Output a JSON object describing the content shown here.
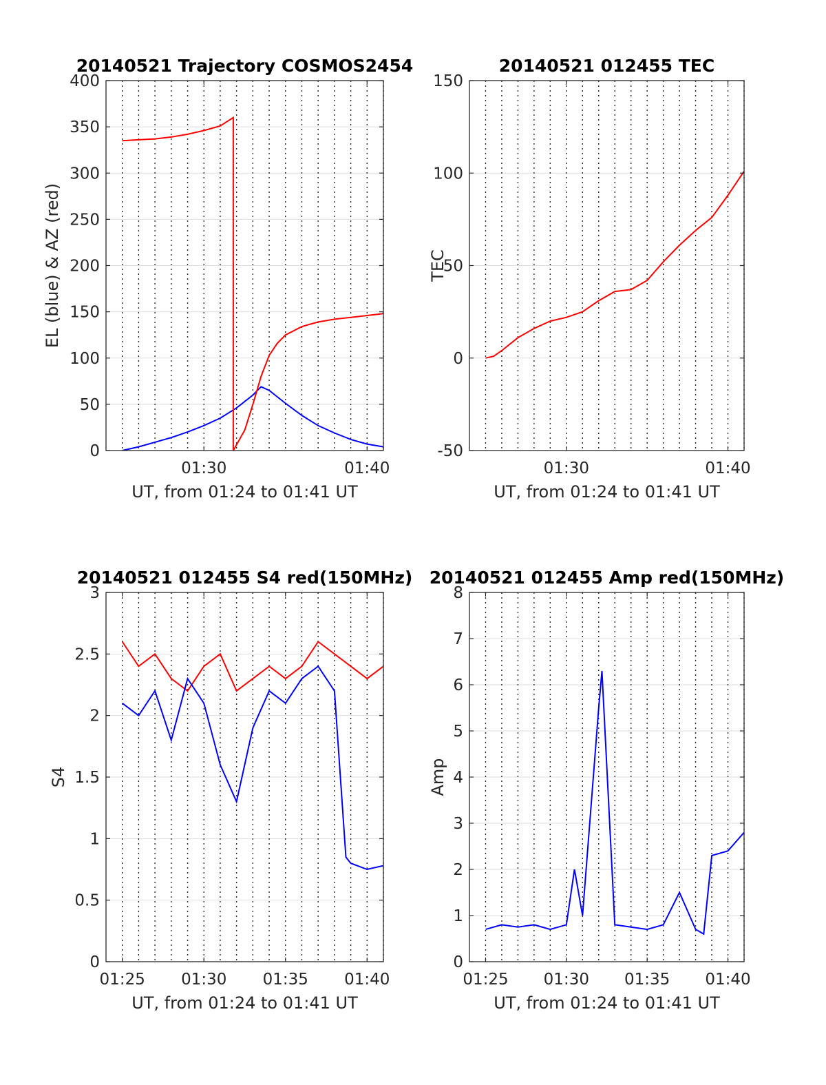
{
  "colors": {
    "red": "#ff0000",
    "blue": "#0000ff"
  },
  "chart_data": [
    {
      "id": "trajectory",
      "type": "line",
      "title": "20140521 Trajectory COSMOS2454",
      "xlabel": "UT, from 01:24 to 01:41 UT",
      "ylabel": "EL (blue) & AZ (red)",
      "xlim_minutes_after_01_00": [
        24.0,
        41.0
      ],
      "ylim": [
        0,
        400
      ],
      "yticks": [
        "0",
        "50",
        "100",
        "150",
        "200",
        "250",
        "300",
        "350",
        "400"
      ],
      "xticks": [
        "01:30",
        "01:40"
      ],
      "grid": "vertical dotted every minute, horizontal at y ticks",
      "series": [
        {
          "name": "EL (blue)",
          "color": "blue",
          "x": [
            "01:25",
            "01:26",
            "01:27",
            "01:28",
            "01:29",
            "01:30",
            "01:31",
            "01:32",
            "01:33",
            "01:33.5",
            "01:34",
            "01:35",
            "01:36",
            "01:37",
            "01:38",
            "01:39",
            "01:40",
            "01:41"
          ],
          "y": [
            0,
            4,
            9,
            14,
            20,
            27,
            35,
            46,
            60,
            69,
            65,
            51,
            38,
            27,
            19,
            12,
            7,
            4
          ]
        },
        {
          "name": "AZ (red)",
          "color": "red",
          "x": [
            "01:25",
            "01:26",
            "01:27",
            "01:28",
            "01:29",
            "01:30",
            "01:31",
            "01:31.8",
            "01:31.8",
            "01:32.5",
            "01:33",
            "01:33.5",
            "01:34",
            "01:34.5",
            "01:35",
            "01:36",
            "01:37",
            "01:38",
            "01:39",
            "01:40",
            "01:41"
          ],
          "y": [
            335,
            336,
            337,
            339,
            342,
            346,
            351,
            360,
            0,
            22,
            50,
            80,
            103,
            116,
            125,
            134,
            139,
            142,
            144,
            146,
            148
          ]
        }
      ]
    },
    {
      "id": "tec",
      "type": "line",
      "title": "20140521 012455 TEC",
      "xlabel": "UT, from 01:24 to 01:41 UT",
      "ylabel": "TEC",
      "xlim_minutes_after_01_00": [
        24.0,
        41.0
      ],
      "ylim": [
        -50,
        150
      ],
      "yticks": [
        "-50",
        "0",
        "50",
        "100",
        "150"
      ],
      "xticks": [
        "01:30",
        "01:40"
      ],
      "grid": "vertical dotted every minute, horizontal at y ticks",
      "series": [
        {
          "name": "TEC",
          "color": "red",
          "x": [
            "01:25",
            "01:25.5",
            "01:26",
            "01:27",
            "01:28",
            "01:29",
            "01:30",
            "01:31",
            "01:32",
            "01:33",
            "01:34",
            "01:35",
            "01:36",
            "01:37",
            "01:38",
            "01:39",
            "01:40",
            "01:41"
          ],
          "y": [
            0,
            1,
            4,
            11,
            16,
            20,
            22,
            25,
            31,
            36,
            37,
            42,
            52,
            61,
            69,
            76,
            88,
            101
          ]
        }
      ]
    },
    {
      "id": "s4",
      "type": "line",
      "title": "20140521 012455 S4 red(150MHz)",
      "xlabel": "UT, from 01:24 to 01:41 UT",
      "ylabel": "S4",
      "xlim_minutes_after_01_00": [
        24.0,
        41.0
      ],
      "ylim": [
        0,
        3
      ],
      "yticks": [
        "0",
        "0.5",
        "1",
        "1.5",
        "2",
        "2.5",
        "3"
      ],
      "xticks": [
        "01:25",
        "01:30",
        "01:35",
        "01:40"
      ],
      "grid": "vertical dotted every minute, horizontal at y ticks",
      "series": [
        {
          "name": "",
          "color": "red",
          "x": [
            "01:25",
            "01:26",
            "01:27",
            "01:28",
            "01:29",
            "01:30",
            "01:31",
            "01:32",
            "01:33",
            "01:34",
            "01:35",
            "01:36",
            "01:37",
            "01:38",
            "01:39",
            "01:40",
            "01:41"
          ],
          "y": [
            2.6,
            2.4,
            2.5,
            2.3,
            2.2,
            2.4,
            2.5,
            2.2,
            2.3,
            2.4,
            2.3,
            2.4,
            2.6,
            2.5,
            2.4,
            2.3,
            2.4
          ]
        },
        {
          "name": "",
          "color": "blue",
          "x": [
            "01:25",
            "01:26",
            "01:27",
            "01:28",
            "01:29",
            "01:30",
            "01:31",
            "01:32",
            "01:33",
            "01:34",
            "01:35",
            "01:36",
            "01:37",
            "01:38",
            "01:38.7",
            "01:39",
            "01:40",
            "01:41"
          ],
          "y": [
            2.1,
            2.0,
            2.2,
            1.8,
            2.3,
            2.1,
            1.6,
            1.3,
            1.9,
            2.2,
            2.1,
            2.3,
            2.4,
            2.2,
            0.85,
            0.8,
            0.75,
            0.78
          ]
        }
      ]
    },
    {
      "id": "amp",
      "type": "line",
      "title": "20140521 012455 Amp red(150MHz)",
      "xlabel": "UT, from 01:24 to 01:41 UT",
      "ylabel": "Amp",
      "xlim_minutes_after_01_00": [
        24.0,
        41.0
      ],
      "ylim": [
        0,
        8
      ],
      "yticks": [
        "0",
        "1",
        "2",
        "3",
        "4",
        "5",
        "6",
        "7",
        "8"
      ],
      "xticks": [
        "01:25",
        "01:30",
        "01:35",
        "01:40"
      ],
      "grid": "vertical dotted every minute, horizontal at y ticks",
      "series": [
        {
          "name": "",
          "color": "blue",
          "x": [
            "01:25",
            "01:26",
            "01:27",
            "01:28",
            "01:29",
            "01:30",
            "01:30.5",
            "01:31",
            "01:32",
            "01:32.2",
            "01:33",
            "01:34",
            "01:35",
            "01:36",
            "01:37",
            "01:38",
            "01:38.5",
            "01:39",
            "01:40",
            "01:41"
          ],
          "y": [
            0.7,
            0.8,
            0.75,
            0.8,
            0.7,
            0.8,
            2.0,
            1.0,
            5.5,
            6.3,
            0.8,
            0.75,
            0.7,
            0.8,
            1.5,
            0.7,
            0.6,
            2.3,
            2.4,
            2.8
          ]
        }
      ]
    }
  ]
}
